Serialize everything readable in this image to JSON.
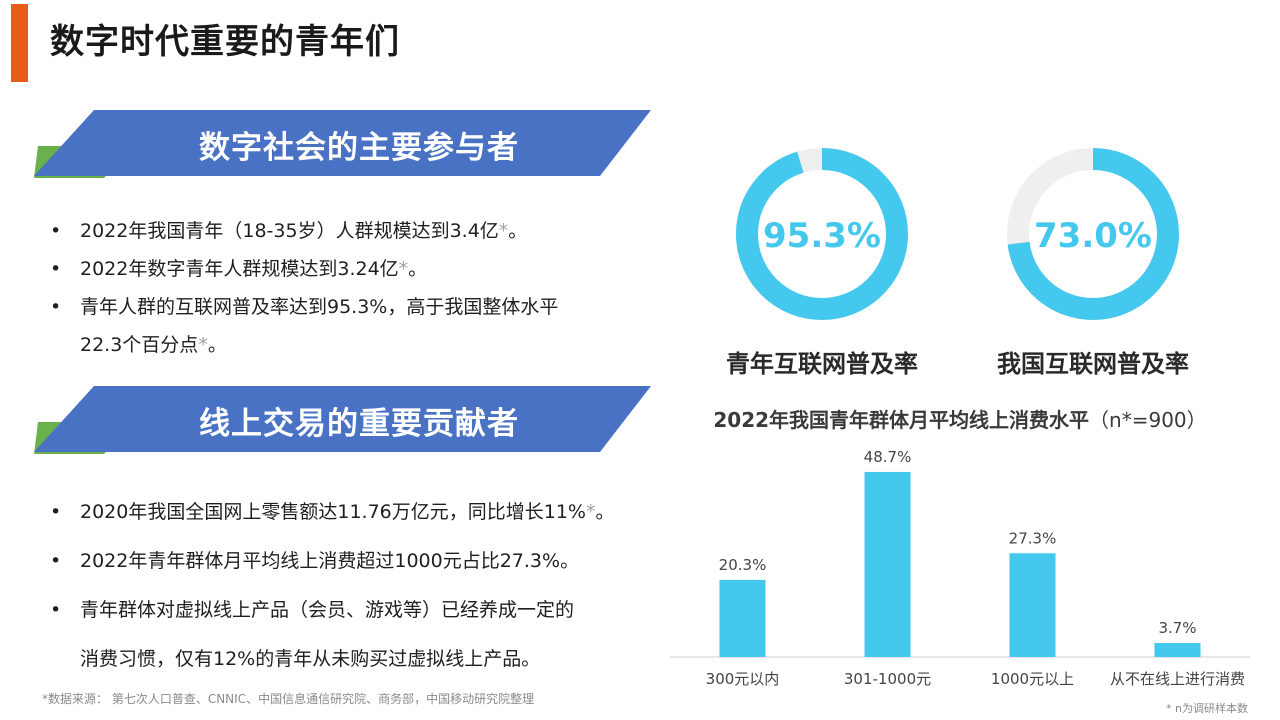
{
  "page_title": "数字时代重要的青年们",
  "section1": {
    "banner": "数字社会的主要参与者",
    "bullets": [
      {
        "text": "2022年我国青年（18-35岁）人群规模达到3.4亿",
        "mark": "*",
        "end": "。"
      },
      {
        "text": "2022年数字青年人群规模达到3.24亿",
        "mark": "*",
        "end": "。"
      },
      {
        "text": "青年人群的互联网普及率达到95.3%，高于我国整体水平",
        "text2": "22.3个百分点",
        "mark": "*",
        "end": "。"
      }
    ]
  },
  "section2": {
    "banner": "线上交易的重要贡献者",
    "bullets": [
      {
        "text": "2020年我国全国网上零售额达11.76万亿元，同比增长11%",
        "mark": "*",
        "end": "。"
      },
      {
        "text": "2022年青年群体月平均线上消费超过1000元占比27.3%。"
      },
      {
        "text": "青年群体对虚拟线上产品（会员、游戏等）已经养成一定的",
        "text2": "消费习惯，仅有12%的青年从未购买过虚拟线上产品。"
      }
    ]
  },
  "source_note": "*数据来源：  第七次人口普查、CNNIC、中国信息通信研究院、商务部，中国移动研究院整理",
  "sample_note": "* n为调研样本数",
  "donuts": [
    {
      "value_text": "95.3%",
      "fraction": 0.953,
      "label": "青年互联网普及率"
    },
    {
      "value_text": "73.0%",
      "fraction": 0.73,
      "label": "我国互联网普及率"
    }
  ],
  "chart_title": {
    "main": "2022年我国青年群体月平均线上消费水平",
    "paren": "（n*=900）"
  },
  "chart_data": {
    "type": "bar",
    "categories": [
      "300元以内",
      "301-1000元",
      "1000元以上",
      "从不在线上进行消费"
    ],
    "values": [
      20.3,
      48.7,
      27.3,
      3.7
    ],
    "value_labels": [
      "20.3%",
      "48.7%",
      "27.3%",
      "3.7%"
    ],
    "ylim": [
      0,
      50
    ],
    "grid": false
  },
  "colors": {
    "accent_orange": "#e85c1a",
    "banner_blue": "#4a72c4",
    "banner_green": "#6ab04c",
    "donut_cyan": "#45c8ee",
    "donut_track": "#efefef",
    "bar_cyan": "#45c8ee"
  }
}
